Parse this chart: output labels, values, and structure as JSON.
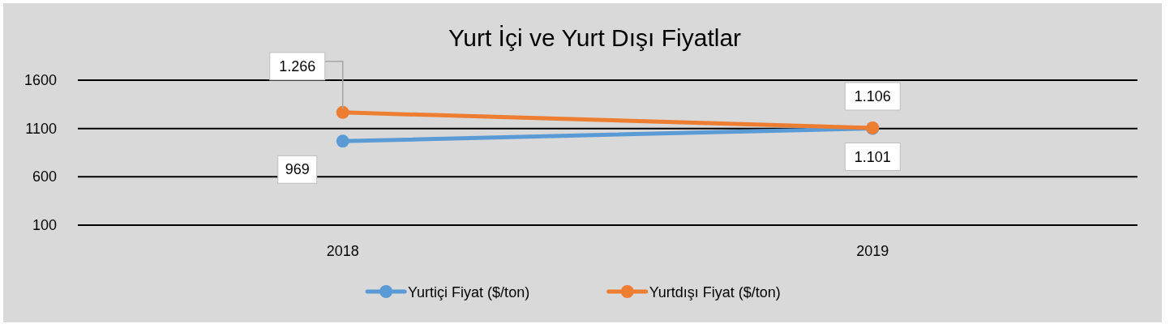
{
  "chart_data": {
    "type": "line",
    "title": "Yurt İçi ve Yurt Dışı Fiyatlar",
    "categories": [
      "2018",
      "2019"
    ],
    "series": [
      {
        "name": "Yurtiçi Fiyat ($/ton)",
        "color": "#5b9bd5",
        "values": [
          969,
          1101
        ],
        "value_labels": [
          "969",
          "1.101"
        ]
      },
      {
        "name": "Yurtdışı Fiyat ($/ton)",
        "color": "#ed7d31",
        "values": [
          1266,
          1106
        ],
        "value_labels": [
          "1.266",
          "1.106"
        ]
      }
    ],
    "ylim": [
      100,
      1600
    ],
    "yticks": [
      100,
      600,
      1100,
      1600
    ],
    "grid": "y",
    "legend": "bottom",
    "marker": "circle",
    "line_style": "solid"
  }
}
